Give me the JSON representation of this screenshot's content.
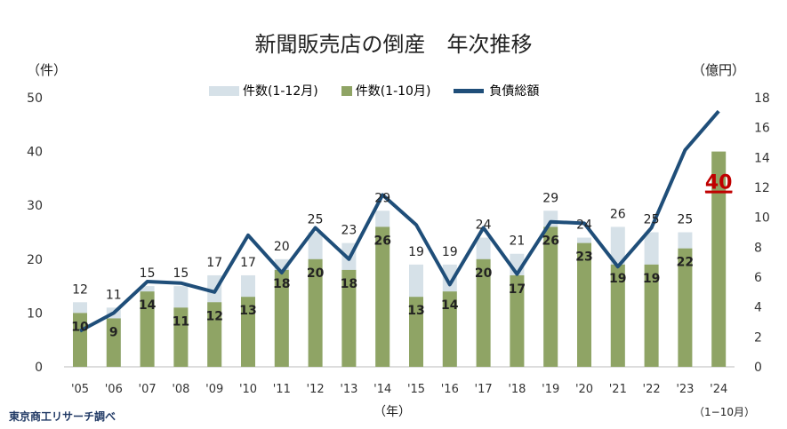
{
  "chart_data": {
    "type": "bar+line",
    "title": "新聞販売店の倒産　年次推移",
    "ylabel_left": "（件）",
    "ylabel_right": "（億円）",
    "xlabel": "（年）",
    "x_note": "（1−10月）",
    "source": "東京商工リサーチ調べ",
    "categories": [
      "'05",
      "'06",
      "'07",
      "'08",
      "'09",
      "'10",
      "'11",
      "'12",
      "'13",
      "'14",
      "'15",
      "'16",
      "'17",
      "'18",
      "'19",
      "'20",
      "'21",
      "'22",
      "'23",
      "'24"
    ],
    "left_ylim": [
      0,
      50
    ],
    "left_ticks": [
      0,
      10,
      20,
      30,
      40,
      50
    ],
    "right_ylim": [
      0,
      18
    ],
    "right_ticks": [
      0,
      2,
      4,
      6,
      8,
      10,
      12,
      14,
      16,
      18
    ],
    "legend": "top-center",
    "series": [
      {
        "name": "件数(1-12月)",
        "type": "bar",
        "axis": "left",
        "color": "#d6e1e8",
        "values": [
          12,
          11,
          15,
          15,
          17,
          17,
          20,
          25,
          23,
          29,
          19,
          19,
          24,
          21,
          29,
          24,
          26,
          25,
          25,
          null
        ]
      },
      {
        "name": "件数(1-10月)",
        "type": "bar",
        "axis": "left",
        "color": "#8fa465",
        "values": [
          10,
          9,
          14,
          11,
          12,
          13,
          18,
          20,
          18,
          26,
          13,
          14,
          20,
          17,
          26,
          23,
          19,
          19,
          22,
          40
        ]
      },
      {
        "name": "負債総額",
        "type": "line",
        "axis": "right",
        "color": "#1f4e79",
        "values": [
          2.4,
          3.6,
          5.7,
          5.6,
          5.0,
          8.8,
          6.3,
          9.3,
          7.2,
          11.5,
          9.5,
          5.5,
          9.3,
          6.2,
          9.7,
          9.6,
          6.7,
          9.3,
          14.5,
          17.1
        ]
      }
    ],
    "highlight": {
      "label": "40",
      "color": "#c00000"
    }
  }
}
